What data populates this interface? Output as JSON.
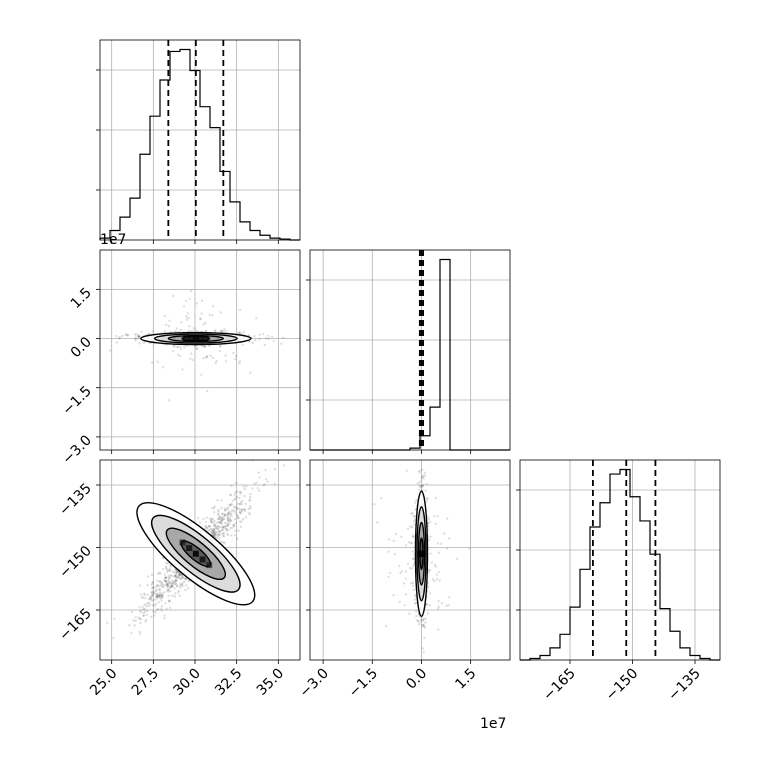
{
  "chart_data": {
    "type": "corner",
    "title": "",
    "parameters": [
      {
        "index": 0,
        "range": [
          24.3,
          36.3
        ],
        "ticks": [
          25.0,
          27.5,
          30.0,
          32.5,
          35.0
        ],
        "tick_labels": [
          "25.0",
          "27.5",
          "30.0",
          "32.5",
          "35.0"
        ],
        "offset_label": "",
        "quantiles": [
          28.4,
          30.05,
          31.7
        ]
      },
      {
        "index": 1,
        "range": [
          -3.4,
          2.7
        ],
        "ticks": [
          -3.0,
          -1.5,
          0.0,
          1.5
        ],
        "tick_labels": [
          "−3.0",
          "−1.5",
          "0.0",
          "1.5"
        ],
        "offset_label": "1e7",
        "quantiles": [
          -0.05,
          0.0,
          0.05
        ]
      },
      {
        "index": 2,
        "range": [
          -177,
          -129
        ],
        "ticks": [
          -165,
          -150,
          -135
        ],
        "tick_labels": [
          "−165",
          "−150",
          "−135"
        ],
        "offset_label": "",
        "quantiles": [
          -159.5,
          -151.5,
          -144.5
        ]
      }
    ],
    "histograms": [
      {
        "param": 0,
        "bin_edges": [
          24.3,
          24.9,
          25.5,
          26.1,
          26.7,
          27.3,
          27.9,
          28.5,
          29.1,
          29.7,
          30.3,
          30.9,
          31.5,
          32.1,
          32.7,
          33.3,
          33.9,
          34.5,
          35.1,
          35.7,
          36.3
        ],
        "counts": [
          2,
          10,
          24,
          44,
          90,
          130,
          168,
          198,
          200,
          178,
          140,
          118,
          72,
          40,
          19,
          10,
          5,
          2,
          1,
          0
        ]
      },
      {
        "param": 1,
        "bin_edges": [
          -3.4,
          -3.095,
          -2.79,
          -2.485,
          -2.18,
          -1.875,
          -1.57,
          -1.265,
          -0.96,
          -0.655,
          -0.35,
          -0.045,
          0.26,
          0.565,
          0.87,
          1.175,
          1.48,
          1.785,
          2.09,
          2.395,
          2.7
        ],
        "counts": [
          0,
          0,
          0,
          0,
          0,
          0,
          0,
          0,
          0,
          0,
          2,
          15,
          45,
          200,
          0,
          0,
          0,
          0,
          0,
          0
        ]
      },
      {
        "param": 2,
        "bin_edges": [
          -177,
          -174.6,
          -172.2,
          -169.8,
          -167.4,
          -165,
          -162.6,
          -160.2,
          -157.8,
          -155.4,
          -153,
          -150.6,
          -148.2,
          -145.8,
          -143.4,
          -141,
          -138.6,
          -136.2,
          -133.8,
          -131.4,
          -129
        ],
        "counts": [
          0,
          1,
          3,
          8,
          17,
          35,
          60,
          88,
          104,
          123,
          126,
          108,
          92,
          70,
          34,
          19,
          8,
          3,
          1,
          0
        ]
      }
    ],
    "joint_2d": [
      {
        "x_param": 0,
        "y_param": 1,
        "correlation": 0.05
      },
      {
        "x_param": 0,
        "y_param": 2,
        "correlation": -0.93
      },
      {
        "x_param": 1,
        "y_param": 2,
        "correlation": 0.0
      }
    ],
    "grid": true
  }
}
